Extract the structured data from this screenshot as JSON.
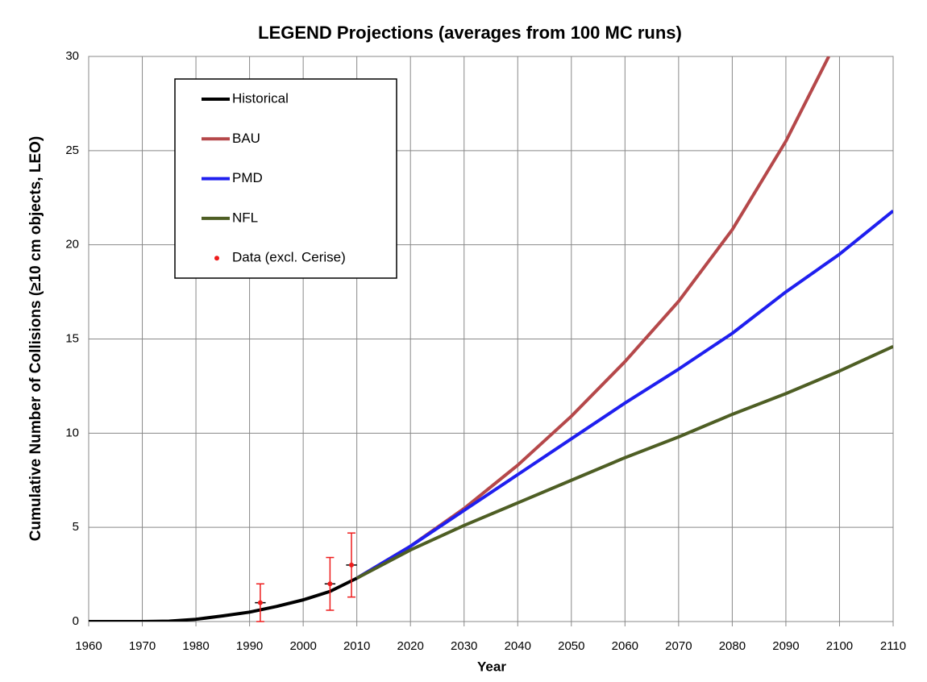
{
  "chart_data": {
    "type": "line",
    "title": "LEGEND Projections (averages from 100 MC runs)",
    "xlabel": "Year",
    "ylabel": "Cumulative Number of Collisions (≥10 cm objects, LEO)",
    "xlim": [
      1960,
      2110
    ],
    "xticks": [
      1960,
      1970,
      1980,
      1990,
      2000,
      2010,
      2020,
      2030,
      2040,
      2050,
      2060,
      2070,
      2080,
      2090,
      2100,
      2110
    ],
    "ylim": [
      0,
      30
    ],
    "yticks": [
      0,
      5,
      10,
      15,
      20,
      25,
      30
    ],
    "grid": true,
    "legend": "upper left",
    "series": [
      {
        "name": "Historical",
        "color": "#000000",
        "x": [
          1960,
          1970,
          1975,
          1980,
          1985,
          1990,
          1995,
          2000,
          2005,
          2010
        ],
        "values": [
          0,
          0,
          0.02,
          0.12,
          0.3,
          0.5,
          0.8,
          1.15,
          1.6,
          2.3
        ]
      },
      {
        "name": "BAU",
        "color": "#b5484a",
        "x": [
          2010,
          2020,
          2030,
          2040,
          2050,
          2060,
          2070,
          2080,
          2090,
          2098
        ],
        "values": [
          2.3,
          4.0,
          6.0,
          8.3,
          10.9,
          13.8,
          17.0,
          20.8,
          25.5,
          30.0
        ]
      },
      {
        "name": "PMD",
        "color": "#1f1fef",
        "x": [
          2010,
          2020,
          2030,
          2040,
          2050,
          2060,
          2070,
          2080,
          2090,
          2100,
          2110
        ],
        "values": [
          2.3,
          4.0,
          5.9,
          7.8,
          9.7,
          11.6,
          13.4,
          15.3,
          17.5,
          19.5,
          21.8
        ]
      },
      {
        "name": "NFL",
        "color": "#4e5e24",
        "x": [
          2010,
          2020,
          2030,
          2040,
          2050,
          2060,
          2070,
          2080,
          2090,
          2100,
          2110
        ],
        "values": [
          2.3,
          3.8,
          5.1,
          6.3,
          7.5,
          8.7,
          9.8,
          11.0,
          12.1,
          13.3,
          14.6
        ]
      },
      {
        "name": "Data (excl. Cerise)",
        "color": "#ee1c1c",
        "marker": "point",
        "x": [
          1992,
          2005,
          2009
        ],
        "values": [
          1,
          2,
          3
        ],
        "yerr": [
          1.0,
          1.4,
          1.7
        ],
        "xerr": [
          1,
          1,
          1
        ]
      }
    ]
  }
}
